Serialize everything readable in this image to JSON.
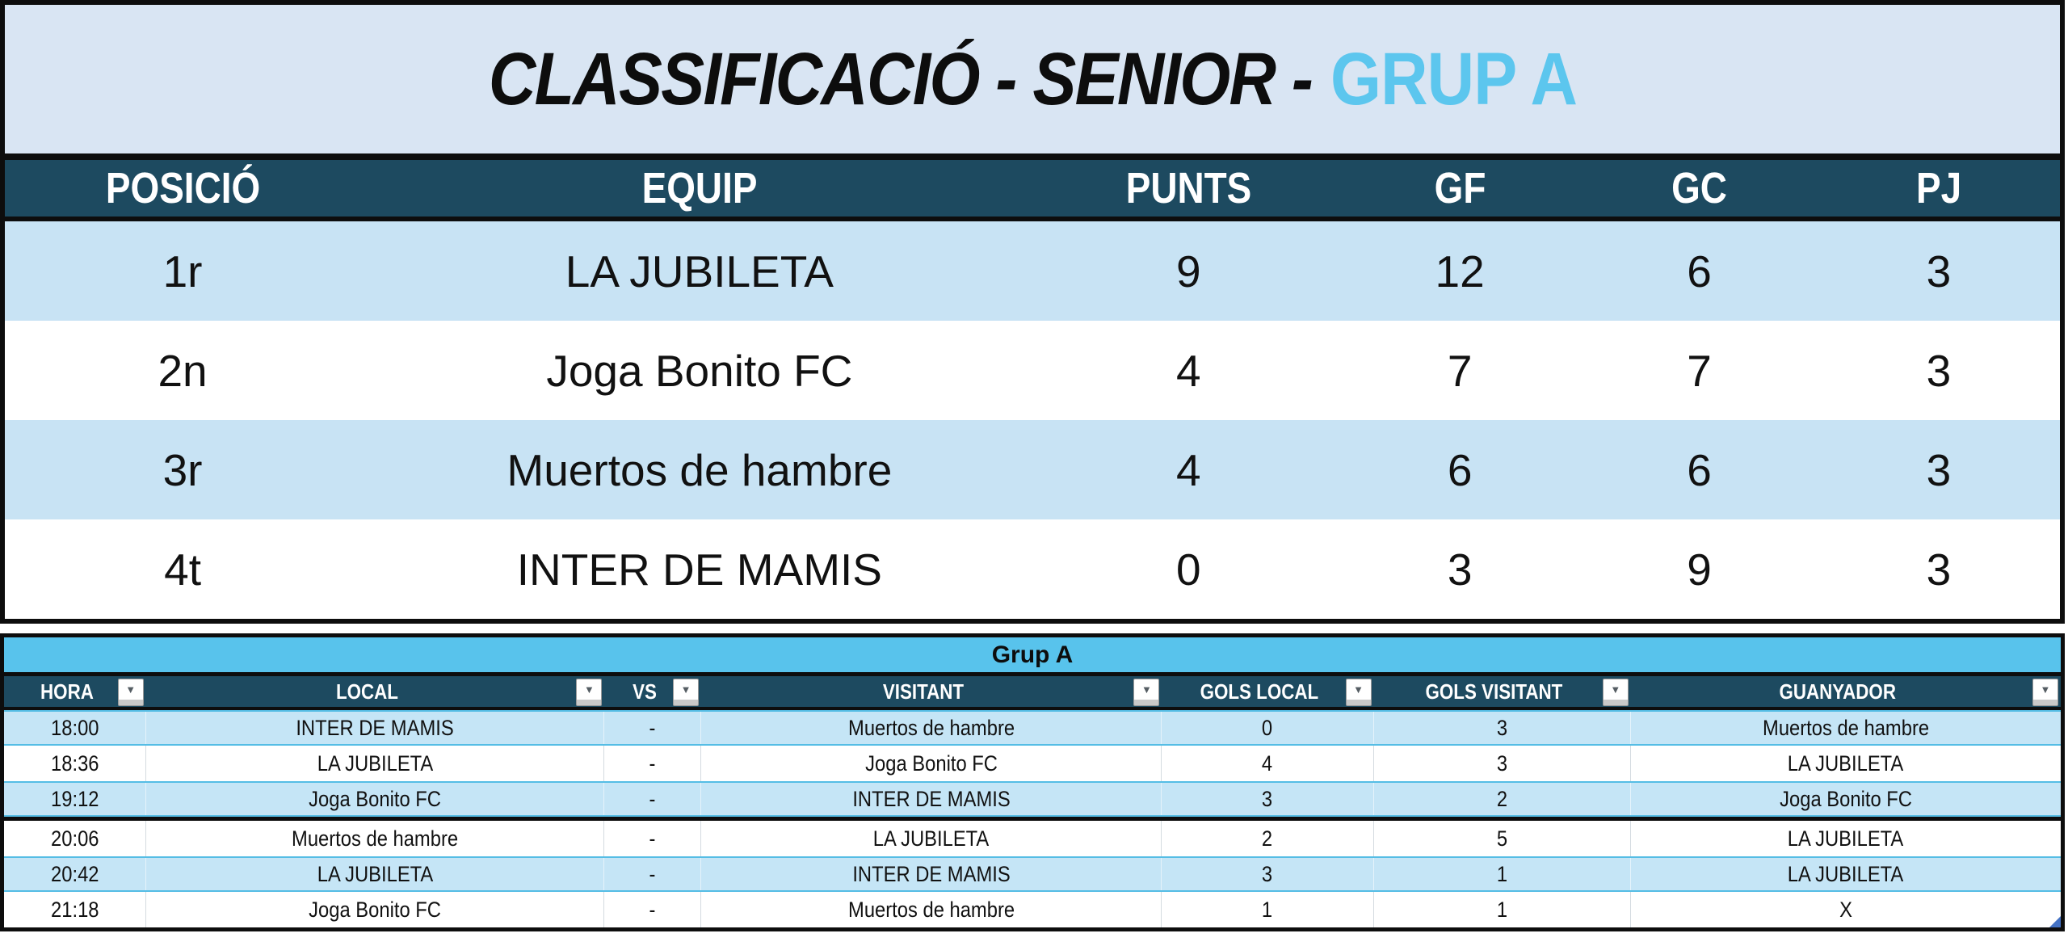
{
  "title": {
    "main": "CLASSIFICACIÓ - SENIOR -",
    "highlight": "GRUP A"
  },
  "standings": {
    "columns": [
      "POSICIÓ",
      "EQUIP",
      "PUNTS",
      "GF",
      "GC",
      "PJ"
    ],
    "rows": [
      {
        "posicio": "1r",
        "equip": "LA JUBILETA",
        "punts": "9",
        "gf": "12",
        "gc": "6",
        "pj": "3"
      },
      {
        "posicio": "2n",
        "equip": "Joga Bonito FC",
        "punts": "4",
        "gf": "7",
        "gc": "7",
        "pj": "3"
      },
      {
        "posicio": "3r",
        "equip": "Muertos de hambre",
        "punts": "4",
        "gf": "6",
        "gc": "6",
        "pj": "3"
      },
      {
        "posicio": "4t",
        "equip": "INTER DE MAMIS",
        "punts": "0",
        "gf": "3",
        "gc": "9",
        "pj": "3"
      }
    ]
  },
  "matches": {
    "group_label": "Grup A",
    "columns": [
      "HORA",
      "LOCAL",
      "VS",
      "VISITANT",
      "GOLS LOCAL",
      "GOLS VISITANT",
      "GUANYADOR"
    ],
    "rows": [
      {
        "hora": "18:00",
        "local": "INTER DE MAMIS",
        "vs": "-",
        "visitant": "Muertos de hambre",
        "gols_local": "0",
        "gols_visitant": "3",
        "guanyador": "Muertos de hambre"
      },
      {
        "hora": "18:36",
        "local": "LA JUBILETA",
        "vs": "-",
        "visitant": "Joga Bonito FC",
        "gols_local": "4",
        "gols_visitant": "3",
        "guanyador": "LA JUBILETA"
      },
      {
        "hora": "19:12",
        "local": "Joga Bonito FC",
        "vs": "-",
        "visitant": "INTER DE MAMIS",
        "gols_local": "3",
        "gols_visitant": "2",
        "guanyador": "Joga Bonito FC"
      },
      {
        "hora": "20:06",
        "local": "Muertos de hambre",
        "vs": "-",
        "visitant": "LA JUBILETA",
        "gols_local": "2",
        "gols_visitant": "5",
        "guanyador": "LA JUBILETA"
      },
      {
        "hora": "20:42",
        "local": "LA JUBILETA",
        "vs": "-",
        "visitant": "INTER DE MAMIS",
        "gols_local": "3",
        "gols_visitant": "1",
        "guanyador": "LA JUBILETA"
      },
      {
        "hora": "21:18",
        "local": "Joga Bonito FC",
        "vs": "-",
        "visitant": "Muertos de hambre",
        "gols_local": "1",
        "gols_visitant": "1",
        "guanyador": "X"
      }
    ]
  },
  "icons": {
    "filter_dropdown": "▼"
  },
  "colors": {
    "header_teal": "#1d4a60",
    "title_background": "#d9e5f3",
    "title_accent": "#5cc6ee",
    "standings_stripe": "#c8e3f4",
    "group_bar": "#58c3ec",
    "match_stripe": "#c5e5f6",
    "match_stripe_border": "#55bde5",
    "border_black": "#0d0d0d",
    "corner_handle": "#4472c4"
  }
}
